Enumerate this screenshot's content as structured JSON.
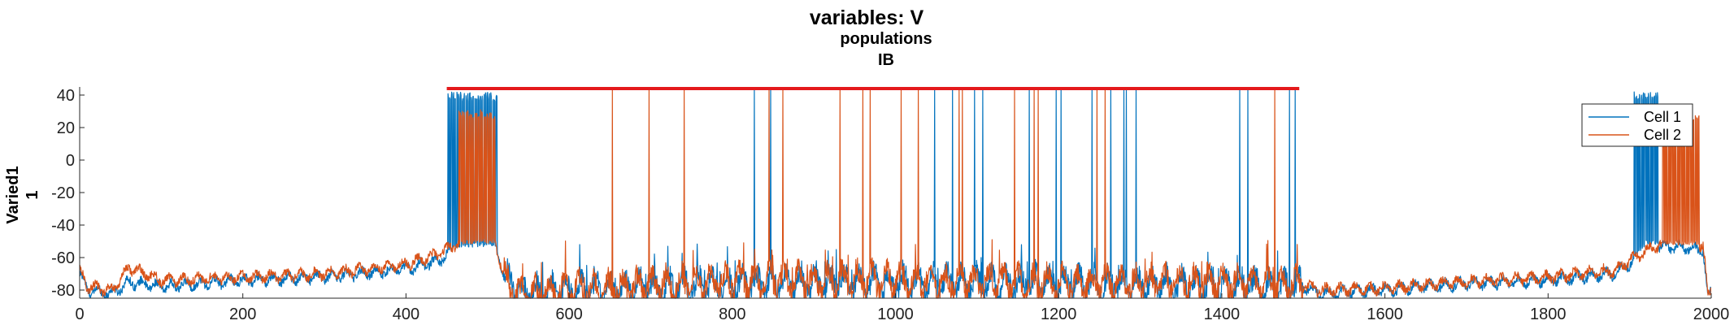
{
  "chart_data": {
    "type": "line",
    "title": "variables: V",
    "subtitle_lines": [
      "populations",
      "IB"
    ],
    "ylabel_lines": [
      "Varied1",
      "1"
    ],
    "xlim": [
      0,
      2000
    ],
    "ylim": [
      -85,
      45
    ],
    "xticks": [
      0,
      200,
      400,
      600,
      800,
      1000,
      1200,
      1400,
      1600,
      1800,
      2000
    ],
    "yticks": [
      40,
      20,
      0,
      -20,
      -40,
      -60,
      -80
    ],
    "grid": false,
    "legend_position": "top-right",
    "stimulus_bar": {
      "x_start": 450,
      "x_end": 1495,
      "y": 44,
      "color": "#e41a1c"
    },
    "series": [
      {
        "name": "Cell 1",
        "color": "#0072bd",
        "baseline": [
          [
            0,
            -70
          ],
          [
            10,
            -80
          ],
          [
            40,
            -82
          ],
          [
            60,
            -75
          ],
          [
            100,
            -78
          ],
          [
            200,
            -74
          ],
          [
            300,
            -72
          ],
          [
            400,
            -67
          ],
          [
            440,
            -62
          ],
          [
            450,
            -58
          ],
          [
            460,
            -54
          ],
          [
            510,
            -53
          ],
          [
            520,
            -70
          ],
          [
            540,
            -82
          ],
          [
            600,
            -80
          ],
          [
            800,
            -76
          ],
          [
            1000,
            -75
          ],
          [
            1200,
            -76
          ],
          [
            1400,
            -77
          ],
          [
            1500,
            -78
          ],
          [
            1520,
            -82
          ],
          [
            1600,
            -80
          ],
          [
            1700,
            -76
          ],
          [
            1800,
            -74
          ],
          [
            1880,
            -70
          ],
          [
            1900,
            -64
          ],
          [
            1920,
            -52
          ],
          [
            1990,
            -55
          ],
          [
            1996,
            -84
          ],
          [
            2000,
            -82
          ]
        ],
        "bursts": [
          [
            450,
            512
          ],
          [
            1905,
            1935
          ]
        ],
        "spikes": [
          827,
          847,
          1048,
          1070,
          1097,
          1107,
          1164,
          1197,
          1203,
          1241,
          1264,
          1280,
          1283,
          1295,
          1422,
          1432,
          1483,
          1490
        ]
      },
      {
        "name": "Cell 2",
        "color": "#d95319",
        "baseline": [
          [
            0,
            -68
          ],
          [
            10,
            -78
          ],
          [
            40,
            -80
          ],
          [
            60,
            -66
          ],
          [
            100,
            -74
          ],
          [
            200,
            -72
          ],
          [
            300,
            -70
          ],
          [
            400,
            -64
          ],
          [
            440,
            -58
          ],
          [
            460,
            -52
          ],
          [
            510,
            -51
          ],
          [
            520,
            -72
          ],
          [
            540,
            -84
          ],
          [
            600,
            -80
          ],
          [
            800,
            -74
          ],
          [
            1000,
            -74
          ],
          [
            1200,
            -76
          ],
          [
            1400,
            -75
          ],
          [
            1500,
            -77
          ],
          [
            1520,
            -80
          ],
          [
            1600,
            -79
          ],
          [
            1700,
            -75
          ],
          [
            1800,
            -72
          ],
          [
            1880,
            -68
          ],
          [
            1900,
            -62
          ],
          [
            1930,
            -53
          ],
          [
            1990,
            -52
          ],
          [
            1996,
            -84
          ],
          [
            2000,
            -80
          ]
        ],
        "bursts": [
          [
            465,
            510
          ],
          [
            1940,
            1985
          ]
        ],
        "spikes": [
          653,
          698,
          741,
          845,
          862,
          932,
          960,
          969,
          1007,
          1028,
          1078,
          1082,
          1146,
          1170,
          1175,
          1247,
          1257,
          1465
        ]
      }
    ]
  }
}
